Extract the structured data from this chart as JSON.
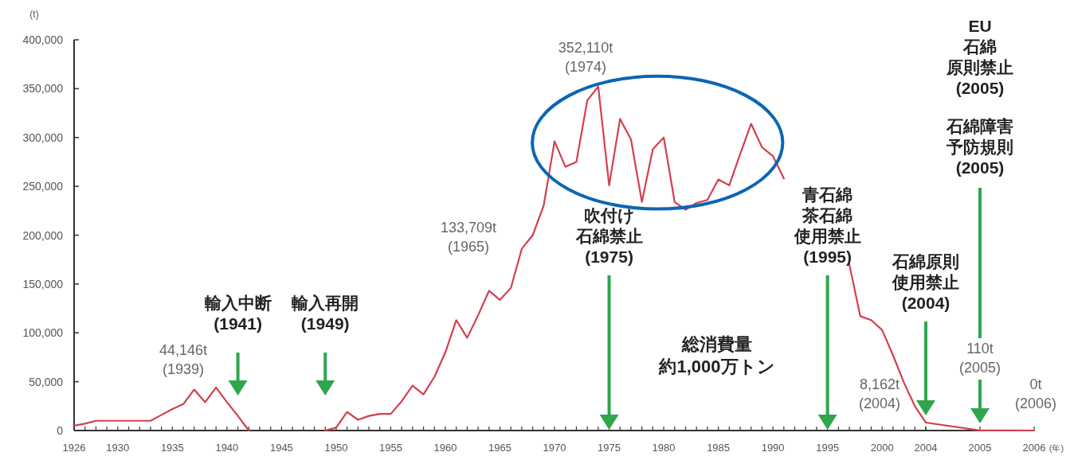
{
  "chart_data": [
    {
      "type": "line",
      "color": "#d2404e",
      "ylabel": "(t)",
      "ylim": [
        0,
        400000
      ],
      "yticks": [
        0,
        {
          "value": 50000,
          "label": "50,000"
        },
        {
          "value": 100000,
          "label": "100,000"
        },
        {
          "value": 150000,
          "label": "150,000"
        },
        {
          "value": 200000,
          "label": "200,000"
        },
        {
          "value": 250000,
          "label": "250,000"
        },
        {
          "value": 300000,
          "label": "300,000"
        },
        {
          "value": 350000,
          "label": "350,000"
        },
        {
          "value": 400000,
          "label": "400,000"
        }
      ],
      "categories": [
        "1926",
        null,
        null,
        null,
        "1930",
        null,
        null,
        null,
        null,
        "1935",
        null,
        null,
        null,
        null,
        "1940",
        null,
        null,
        null,
        null,
        "1945",
        null,
        null,
        null,
        null,
        "1950",
        null,
        null,
        null,
        null,
        "1955",
        null,
        null,
        null,
        null,
        "1960",
        null,
        null,
        null,
        null,
        "1965",
        null,
        null,
        null,
        null,
        "1970",
        null,
        null,
        null,
        null,
        "1975",
        null,
        null,
        null,
        null,
        "1980",
        null,
        null,
        null,
        null,
        "1985",
        null,
        null,
        null,
        null,
        "1990",
        null,
        null,
        null,
        null,
        "1995",
        null,
        null,
        null,
        null,
        "2000",
        null,
        null,
        null,
        "2004"
      ],
      "values": [
        5000,
        7000,
        10000,
        10000,
        10000,
        10000,
        10000,
        10000,
        16000,
        22000,
        27000,
        42000,
        29000,
        44146,
        29000,
        15000,
        0,
        null,
        null,
        null,
        null,
        null,
        null,
        0,
        3000,
        19000,
        11000,
        15000,
        17000,
        17000,
        30000,
        46000,
        37000,
        55000,
        80000,
        113000,
        95000,
        118000,
        143000,
        133709,
        146000,
        186000,
        200000,
        230000,
        296000,
        270000,
        275000,
        338000,
        352110,
        251000,
        319000,
        298000,
        234000,
        288000,
        300000,
        234000,
        226000,
        233000,
        236000,
        257000,
        251000,
        283000,
        314000,
        290000,
        281000,
        258000,
        null,
        null,
        null,
        null,
        null,
        170000,
        117000,
        113000,
        103000,
        77000,
        49000,
        25000,
        8162
      ],
      "annotations": [
        "総消費量約1,000万トン",
        "44,146t\n(1939)",
        "133,709t\n(1965)",
        "352,110t\n(1974)",
        {
          "text": "8,162t\n(2004)",
          "x": "2004",
          "y": 8162
        },
        "輸入中断(1941)",
        "輸入再開(1949)",
        "吹付け石綿禁止(1975)",
        "青石綿茶石綿使用禁止(1995)",
        "石綿原則使用禁止(2004)"
      ]
    },
    {
      "type": "line",
      "color": "#d2404e",
      "xlabel": "(年)",
      "ylim": [
        0,
        400000
      ],
      "tick_labels": "x",
      "categories": [
        null,
        "2005",
        "2006"
      ],
      "values": [
        8162,
        110,
        0
      ],
      "annotations": [
        "110t\n(2005)",
        {
          "text": "0t\n(2006)",
          "x": "2006",
          "y": 0
        },
        "EU石綿原則禁止(2005)",
        "石綿障害予防規則(2005)"
      ]
    }
  ]
}
